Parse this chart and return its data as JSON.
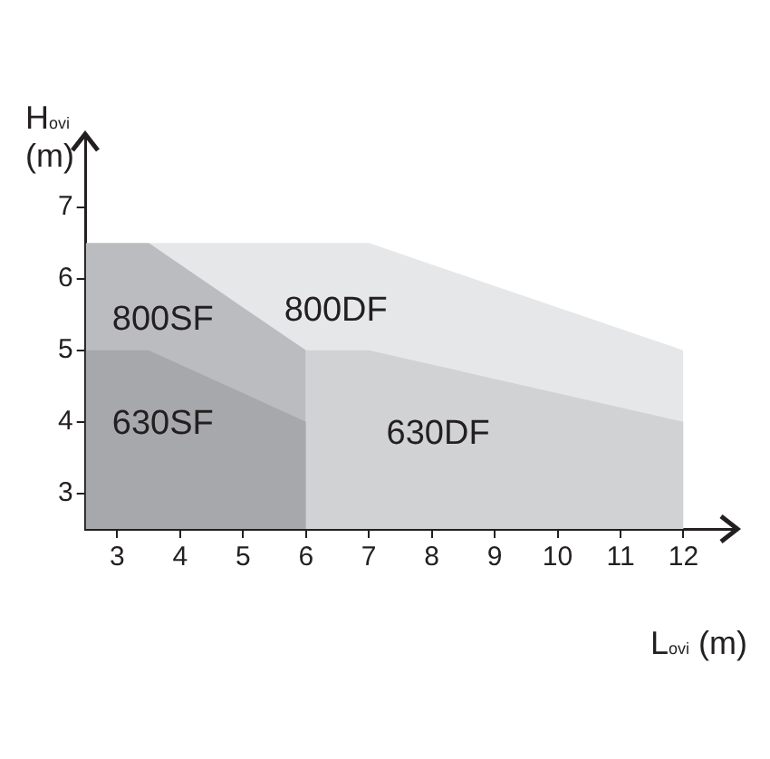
{
  "chart_data": {
    "type": "area",
    "xlabel": "L$_{ovi}$ (m)",
    "ylabel": "H$_{ovi}$ (m)",
    "xlim": [
      2.5,
      12.8
    ],
    "xticks": [
      3,
      4,
      5,
      6,
      7,
      8,
      9,
      10,
      11,
      12
    ],
    "ylim": [
      2.5,
      8
    ],
    "yticks": [
      3,
      4,
      5,
      6,
      7
    ],
    "grid": false,
    "legend": false,
    "series": [
      {
        "name": "800DF",
        "color": "#e6e7e8",
        "x": [
          3.5,
          7,
          12
        ],
        "values": [
          6.5,
          6.5,
          5
        ]
      },
      {
        "name": "800SF",
        "color": "#bbbcbf",
        "x": [
          2.5,
          3.5,
          6
        ],
        "values": [
          6.5,
          6.5,
          5
        ]
      },
      {
        "name": "630DF",
        "color": "#d1d2d4",
        "x": [
          6,
          7,
          12
        ],
        "values": [
          5,
          5,
          4
        ]
      },
      {
        "name": "630SF",
        "color": "#a7a8ab",
        "x": [
          2.5,
          3.5,
          6
        ],
        "values": [
          5,
          5,
          4
        ]
      }
    ]
  }
}
